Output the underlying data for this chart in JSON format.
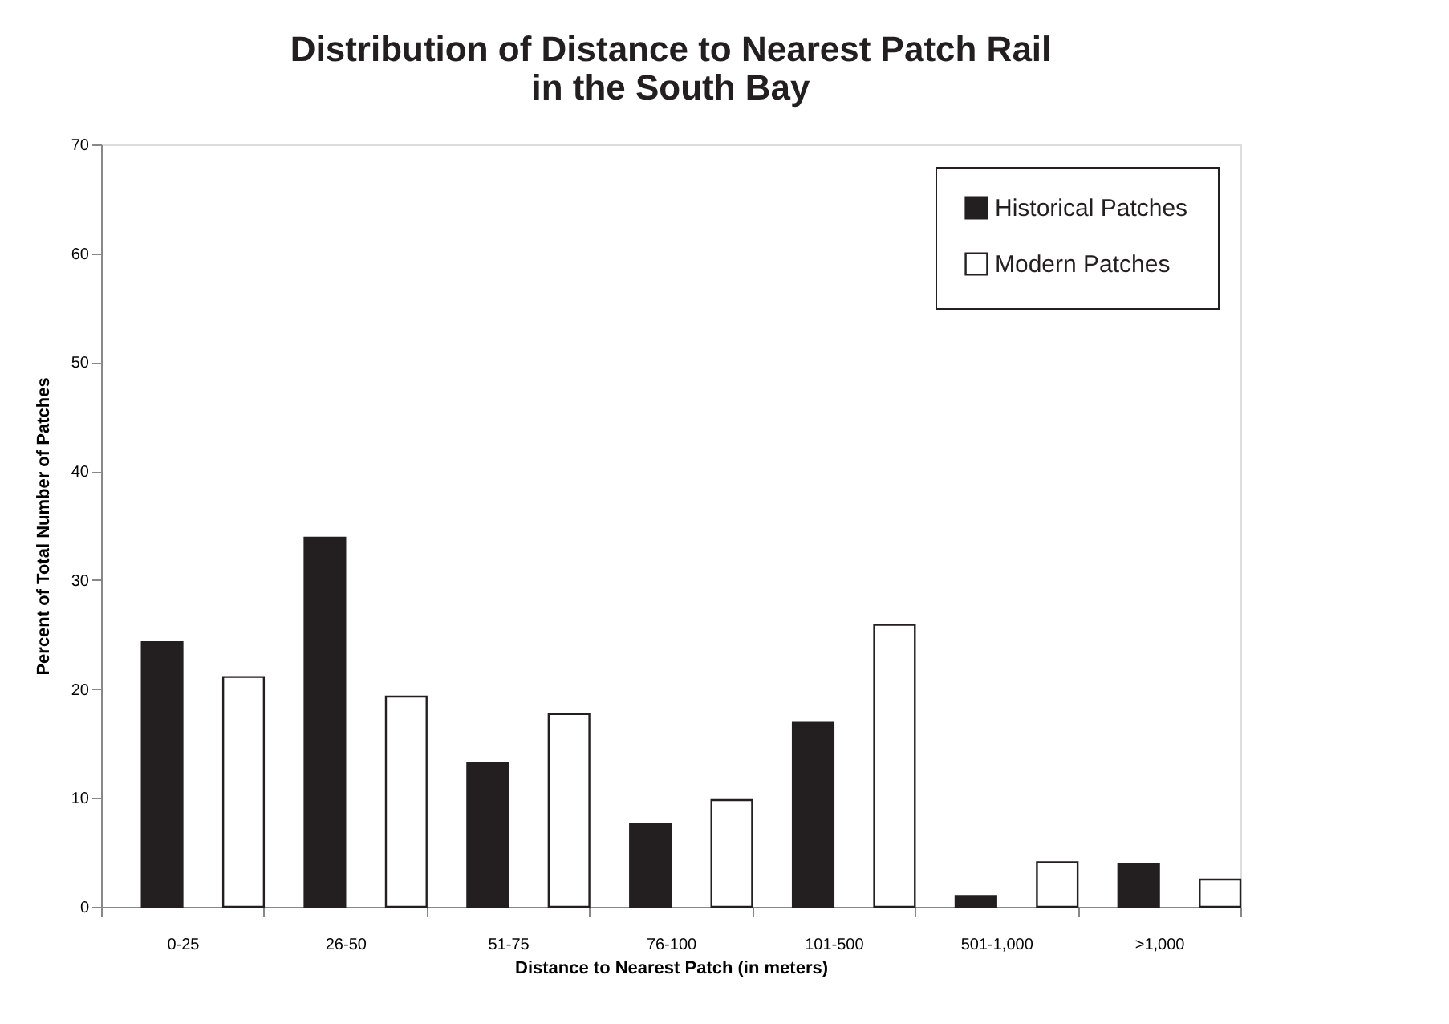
{
  "chart_data": {
    "type": "bar",
    "title": "Distribution of Distance to Nearest Patch Rail\nin the South Bay",
    "xlabel": "Distance to Nearest Patch (in meters)",
    "ylabel": "Percent of Total Number of Patches",
    "categories": [
      "0-25",
      "26-50",
      "51-75",
      "76-100",
      "101-500",
      "501-1,000",
      ">1,000"
    ],
    "series": [
      {
        "name": "Historical Patches",
        "color": "#231f20",
        "values": [
          24.3,
          33.9,
          13.2,
          7.6,
          16.9,
          1.0,
          3.9
        ]
      },
      {
        "name": "Modern Patches",
        "color": "#ffffff",
        "values": [
          21.1,
          19.3,
          17.7,
          9.8,
          25.9,
          4.1,
          2.5
        ]
      }
    ],
    "ylim": [
      0,
      70
    ],
    "yticks": [
      0,
      10,
      20,
      30,
      40,
      50,
      60,
      70
    ],
    "grid": false,
    "legend": "top right"
  }
}
